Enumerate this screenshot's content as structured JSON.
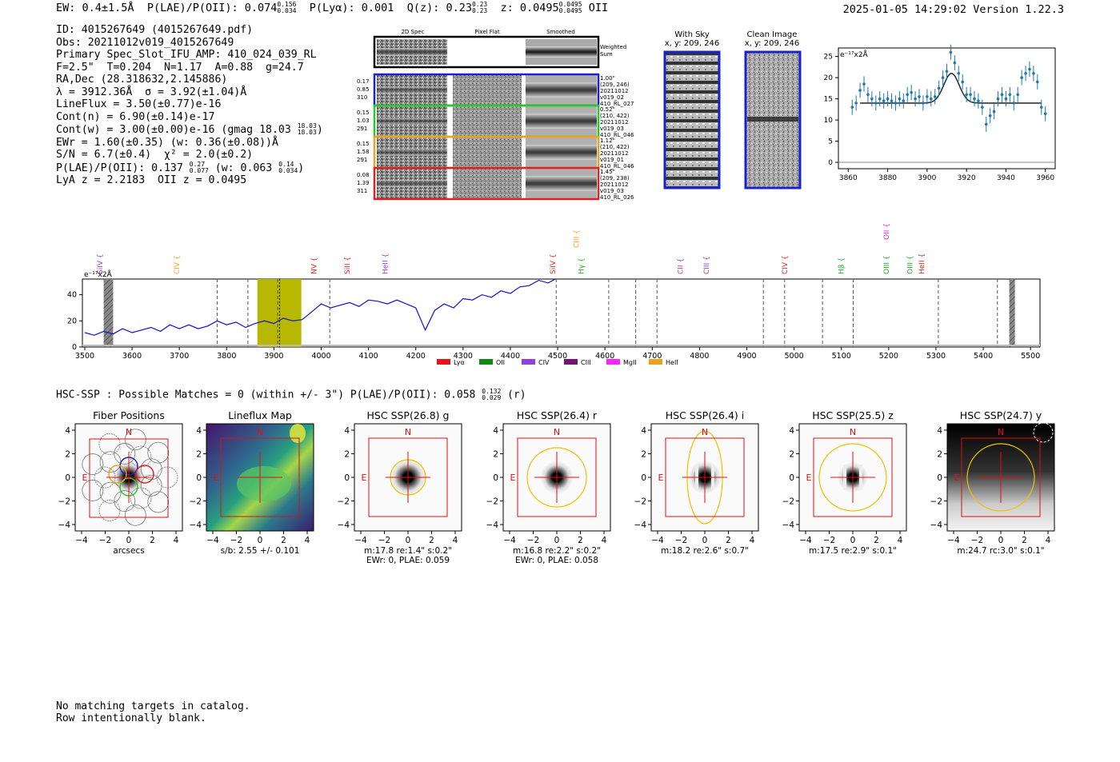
{
  "header": {
    "ew": "EW: 0.4±1.5Å",
    "plae_label": "P(LAE)/P(OII):",
    "plae_val": "0.074",
    "plae_hi": "0.156",
    "plae_lo": "0.034",
    "plya": "P(Lyα): 0.001",
    "q_label": "Q(z): 0.23",
    "q_hi": "0.23",
    "q_lo": "0.23",
    "z_label": "z: 0.0495",
    "z_hi": "0.0495",
    "z_lo": "0.0495",
    "z_line": "OII",
    "datetime": "2025-01-05 14:29:02",
    "version": "Version 1.22.3"
  },
  "info": {
    "id": "ID: 4015267649 (4015267649.pdf)",
    "obs": "Obs: 20211012v019_4015267649",
    "primary": "Primary Spec_Slot_IFU_AMP: 410_024_039_RL",
    "params": "F=2.5\"  T=0.204  N=1.17  A=0.88  g=24.7",
    "radec": "RA,Dec (28.318632,2.145886)",
    "lambda": "λ = 3912.36Å  σ = 3.92(±1.04)Å",
    "lineflux": "LineFlux = 3.50(±0.77)e-16",
    "contn": "Cont(n) = 6.90(±0.14)e-17",
    "contw_a": "Cont(w) = 3.00(±0.00)e-16 (gmag 18.03",
    "contw_hi": "18.03",
    "contw_lo": "18.03",
    "contw_b": ")",
    "ewr": "EWr = 1.60(±0.35) (w: 0.36(±0.08))Å",
    "sn": "S/N = 6.7(±0.4)  χ² = 2.0(±0.2)",
    "plae_a": "P(LAE)/P(OII): 0.137",
    "plae_hi": "0.27",
    "plae_lo": "0.077",
    "plae_b": " (w: 0.063",
    "plae_whi": "0.14",
    "plae_wlo": "0.034",
    "plae_c": ")",
    "lya": "LyA z = 2.2183  OII z = 0.0495"
  },
  "cutouts": {
    "col_2d": "2D Spec",
    "col_flat": "Pixel Flat",
    "col_smooth": "Smoothed",
    "weighted": "Weighted",
    "sum": "Sum",
    "rows": [
      {
        "a": "0.17",
        "b": "0.85",
        "c": "310",
        "r1": "1.00\"",
        "r2": "(209, 246)",
        "r3": "20211012",
        "r4": "v019_02",
        "r5": "410_RL_027",
        "color": "#1f1fcc"
      },
      {
        "a": "0.15",
        "b": "1.03",
        "c": "291",
        "r1": "0.52\"",
        "r2": "(210, 422)",
        "r3": "20211012",
        "r4": "v019_03",
        "r5": "410_RL_046",
        "color": "#22cc22"
      },
      {
        "a": "0.15",
        "b": "1.58",
        "c": "291",
        "r1": "1.12\"",
        "r2": "(210, 422)",
        "r3": "20211012",
        "r4": "v019_01",
        "r5": "410_RL_046",
        "color": "#f0a020"
      },
      {
        "a": "0.08",
        "b": "1.39",
        "c": "311",
        "r1": "1.45\"",
        "r2": "(209, 238)",
        "r3": "20211012",
        "r4": "v019_03",
        "r5": "410_RL_026",
        "color": "#dd2222"
      }
    ],
    "sky_title": "With Sky",
    "sky_xy": "x, y: 209, 246",
    "clean_title": "Clean Image",
    "clean_xy": "x, y: 209, 246"
  },
  "chart_data": [
    {
      "type": "scatter",
      "name": "zoom-fit",
      "ylabel": "e⁻¹⁷x2Å",
      "xlim": [
        3855,
        3965
      ],
      "ylim": [
        -1.5,
        27
      ],
      "xticks": [
        3860,
        3880,
        3900,
        3920,
        3940,
        3960
      ],
      "yticks": [
        0,
        5,
        10,
        15,
        20,
        25
      ],
      "points": [
        [
          3862,
          13
        ],
        [
          3864,
          14
        ],
        [
          3866,
          17
        ],
        [
          3868,
          18.5
        ],
        [
          3870,
          16
        ],
        [
          3872,
          15
        ],
        [
          3874,
          14
        ],
        [
          3876,
          15
        ],
        [
          3878,
          14.5
        ],
        [
          3880,
          15
        ],
        [
          3882,
          14.5
        ],
        [
          3884,
          14
        ],
        [
          3886,
          15
        ],
        [
          3888,
          14.5
        ],
        [
          3890,
          16
        ],
        [
          3892,
          16.5
        ],
        [
          3894,
          15
        ],
        [
          3896,
          15.5
        ],
        [
          3898,
          14
        ],
        [
          3900,
          15.5
        ],
        [
          3902,
          15
        ],
        [
          3904,
          15.5
        ],
        [
          3906,
          17.5
        ],
        [
          3908,
          20
        ],
        [
          3910,
          21.5
        ],
        [
          3912,
          26
        ],
        [
          3914,
          23.5
        ],
        [
          3916,
          21
        ],
        [
          3918,
          19
        ],
        [
          3920,
          16
        ],
        [
          3922,
          16
        ],
        [
          3924,
          15
        ],
        [
          3926,
          14.5
        ],
        [
          3928,
          13
        ],
        [
          3930,
          9
        ],
        [
          3932,
          11
        ],
        [
          3934,
          12
        ],
        [
          3936,
          15
        ],
        [
          3938,
          16
        ],
        [
          3940,
          15
        ],
        [
          3942,
          16
        ],
        [
          3944,
          14
        ],
        [
          3946,
          16
        ],
        [
          3948,
          20
        ],
        [
          3950,
          21
        ],
        [
          3952,
          22
        ],
        [
          3954,
          21
        ],
        [
          3956,
          19
        ],
        [
          3958,
          13
        ],
        [
          3960,
          11.5
        ]
      ],
      "model": {
        "base": 14,
        "amp": 7,
        "center": 3912.36,
        "sigma": 3.92,
        "x0": 3866,
        "x1": 3958
      }
    },
    {
      "type": "line",
      "name": "full-spectrum",
      "ylabel": "e⁻¹⁷x2Å",
      "xlim": [
        3495,
        5520
      ],
      "ylim": [
        0,
        52
      ],
      "xticks": [
        3500,
        3600,
        3700,
        3800,
        3900,
        4000,
        4100,
        4200,
        4300,
        4400,
        4500,
        4600,
        4700,
        4800,
        4900,
        5000,
        5100,
        5200,
        5300,
        5400,
        5500
      ],
      "yticks": [
        0,
        20,
        40
      ],
      "flux": [
        [
          3500,
          11
        ],
        [
          3520,
          9
        ],
        [
          3540,
          12
        ],
        [
          3560,
          10
        ],
        [
          3580,
          14
        ],
        [
          3600,
          11
        ],
        [
          3620,
          13
        ],
        [
          3640,
          15
        ],
        [
          3660,
          12
        ],
        [
          3680,
          17
        ],
        [
          3700,
          14
        ],
        [
          3720,
          17
        ],
        [
          3740,
          14
        ],
        [
          3760,
          16
        ],
        [
          3780,
          20
        ],
        [
          3800,
          17
        ],
        [
          3820,
          19
        ],
        [
          3840,
          15
        ],
        [
          3860,
          18
        ],
        [
          3880,
          20
        ],
        [
          3900,
          18
        ],
        [
          3920,
          22
        ],
        [
          3940,
          20
        ],
        [
          3960,
          21
        ],
        [
          3980,
          27
        ],
        [
          4000,
          33
        ],
        [
          4020,
          30
        ],
        [
          4040,
          32
        ],
        [
          4060,
          34
        ],
        [
          4080,
          31
        ],
        [
          4100,
          36
        ],
        [
          4120,
          35
        ],
        [
          4140,
          33
        ],
        [
          4160,
          36
        ],
        [
          4180,
          33
        ],
        [
          4200,
          30
        ],
        [
          4220,
          13
        ],
        [
          4240,
          28
        ],
        [
          4260,
          33
        ],
        [
          4280,
          30
        ],
        [
          4300,
          37
        ],
        [
          4320,
          36
        ],
        [
          4340,
          40
        ],
        [
          4360,
          38
        ],
        [
          4380,
          43
        ],
        [
          4400,
          41
        ],
        [
          4420,
          46
        ],
        [
          4440,
          47
        ],
        [
          4460,
          51
        ],
        [
          4480,
          49
        ],
        [
          4495,
          52
        ]
      ],
      "lines": [
        {
          "label": "SiIV",
          "x": 3537,
          "color": "#9040d0"
        },
        {
          "label": "CIV",
          "x": 3700,
          "color": "#f0a020"
        },
        {
          "label": "NV",
          "x": 3990,
          "color": "#dd2222"
        },
        {
          "label": "SiII",
          "x": 4060,
          "color": "#dd2222"
        },
        {
          "label": "HeII",
          "x": 4140,
          "color": "#9040d0"
        },
        {
          "label": "SiIV",
          "x": 4495,
          "color": "#dd2222"
        },
        {
          "label": "CIII",
          "x": 4545,
          "color": "#f0a020"
        },
        {
          "label": "Hγ",
          "x": 4555,
          "color": "#22aa22"
        },
        {
          "label": "CII",
          "x": 4765,
          "color": "#9040d0"
        },
        {
          "label": "CIII",
          "x": 4820,
          "color": "#9040d0"
        },
        {
          "label": "CIV",
          "x": 4985,
          "color": "#dd2222"
        },
        {
          "label": "Hβ",
          "x": 5105,
          "color": "#22aa22"
        },
        {
          "label": "OII",
          "x": 5200,
          "color": "#ee22ee"
        },
        {
          "label": "OIII",
          "x": 5200,
          "color": "#22aa22"
        },
        {
          "label": "OIII",
          "x": 5250,
          "color": "#22aa22"
        },
        {
          "label": "HeII",
          "x": 5275,
          "color": "#dd2222"
        }
      ],
      "dashed": [
        3780,
        3845,
        3908,
        4018,
        4497,
        4608,
        4665,
        4710,
        4935,
        4980,
        5060,
        5125,
        5305,
        5430
      ],
      "legend": [
        {
          "label": "Lyα",
          "color": "#ee1111"
        },
        {
          "label": "OII",
          "color": "#118811"
        },
        {
          "label": "CIV",
          "color": "#9040e0"
        },
        {
          "label": "CIII",
          "color": "#771177"
        },
        {
          "label": "MgII",
          "color": "#ff22ff"
        },
        {
          "label": "HeII",
          "color": "#f0a020"
        }
      ]
    }
  ],
  "hsc": {
    "summary_a": "HSC-SSP : Possible Matches = 0 (within +/- 3\")  P(LAE)/P(OII): 0.058",
    "summary_hi": "0.132",
    "summary_lo": "0.029",
    "summary_b": "(r)",
    "north": "N",
    "east": "E",
    "panels": [
      {
        "title": "Fiber Positions",
        "cap1": "arcsecs",
        "cap2": ""
      },
      {
        "title": "Lineflux Map",
        "cap1": "s/b: 2.55 +/- 0.101",
        "cap2": ""
      },
      {
        "title": "HSC SSP(26.8) g",
        "cap1": "m:17.8  re:1.4\"  s:0.2\"",
        "cap2": "EWr: 0, PLAE: 0.059"
      },
      {
        "title": "HSC SSP(26.4) r",
        "cap1": "m:16.8  re:2.2\"  s:0.2\"",
        "cap2": "EWr: 0, PLAE: 0.058"
      },
      {
        "title": "HSC SSP(26.4) i",
        "cap1": "m:18.2  re:2.6\"  s:0.7\"",
        "cap2": ""
      },
      {
        "title": "HSC SSP(25.5) z",
        "cap1": "m:17.5  re:2.9\"  s:0.1\"",
        "cap2": ""
      },
      {
        "title": "HSC SSP(24.7) y",
        "cap1": "m:24.7 rc:3.0\"  s:0.1\"",
        "cap2": ""
      }
    ],
    "ticks": [
      "−4",
      "−2",
      "0",
      "2",
      "4"
    ]
  },
  "footer": {
    "line1": "No matching targets in catalog.",
    "line2": "Row intentionally blank."
  }
}
